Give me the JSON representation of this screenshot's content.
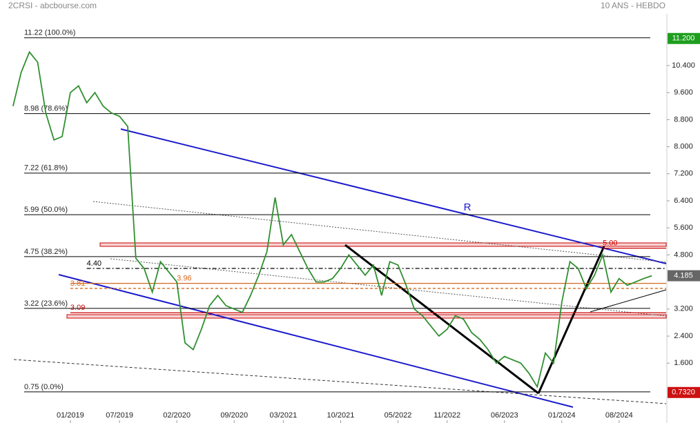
{
  "chart_data": {
    "type": "line",
    "title": "2CRSI - abcbourse.com",
    "subtitle": "10 ANS - HEBDO",
    "x": [
      "2018-06",
      "2018-07",
      "2018-08",
      "2018-09",
      "2018-10",
      "2018-11",
      "2018-12",
      "2019-01",
      "2019-02",
      "2019-03",
      "2019-04",
      "2019-05",
      "2019-06",
      "2019-07",
      "2019-08",
      "2019-09",
      "2019-10",
      "2019-11",
      "2019-12",
      "2020-01",
      "2020-02",
      "2020-03",
      "2020-04",
      "2020-05",
      "2020-06",
      "2020-07",
      "2020-08",
      "2020-09",
      "2020-10",
      "2020-11",
      "2020-12",
      "2021-01",
      "2021-02",
      "2021-03",
      "2021-04",
      "2021-05",
      "2021-06",
      "2021-07",
      "2021-08",
      "2021-09",
      "2021-10",
      "2021-11",
      "2021-12",
      "2022-01",
      "2022-02",
      "2022-03",
      "2022-04",
      "2022-05",
      "2022-06",
      "2022-07",
      "2022-08",
      "2022-09",
      "2022-10",
      "2022-11",
      "2022-12",
      "2023-01",
      "2023-02",
      "2023-03",
      "2023-04",
      "2023-05",
      "2023-06",
      "2023-07",
      "2023-08",
      "2023-09",
      "2023-10",
      "2023-11",
      "2023-12",
      "2024-01",
      "2024-02",
      "2024-03",
      "2024-04",
      "2024-05",
      "2024-06",
      "2024-07",
      "2024-08",
      "2024-09",
      "2024-10",
      "2024-11",
      "2024-12"
    ],
    "series": [
      {
        "color": "#2f8f2f",
        "values": [
          9.2,
          10.2,
          10.8,
          10.5,
          9.0,
          8.2,
          8.3,
          9.6,
          9.8,
          9.3,
          9.6,
          9.2,
          9.0,
          8.9,
          8.6,
          4.7,
          4.4,
          3.7,
          4.6,
          4.3,
          4.0,
          2.2,
          2.0,
          2.6,
          3.3,
          3.6,
          3.3,
          3.2,
          3.1,
          3.6,
          4.2,
          4.9,
          6.5,
          5.1,
          5.4,
          4.9,
          4.4,
          4.0,
          4.0,
          4.1,
          4.4,
          4.8,
          4.5,
          4.2,
          4.5,
          3.6,
          4.6,
          4.5,
          3.9,
          3.2,
          3.0,
          2.7,
          2.4,
          2.6,
          3.0,
          2.9,
          2.5,
          2.3,
          2.0,
          1.6,
          1.8,
          1.7,
          1.6,
          1.3,
          0.9,
          1.9,
          1.6,
          3.4,
          4.6,
          4.4,
          3.8,
          4.2,
          4.8,
          3.7,
          4.1,
          3.9,
          4.0,
          4.1,
          4.185
        ]
      }
    ],
    "xlim": [
      "2018-05",
      "2025-02"
    ],
    "xticks": [
      {
        "value": "2019-01",
        "label": "01/2019"
      },
      {
        "value": "2019-07",
        "label": "07/2019"
      },
      {
        "value": "2020-02",
        "label": "02/2020"
      },
      {
        "value": "2020-09",
        "label": "09/2020"
      },
      {
        "value": "2021-03",
        "label": "03/2021"
      },
      {
        "value": "2021-10",
        "label": "10/2021"
      },
      {
        "value": "2022-05",
        "label": "05/2022"
      },
      {
        "value": "2022-11",
        "label": "11/2022"
      },
      {
        "value": "2023-06",
        "label": "06/2023"
      },
      {
        "value": "2024-01",
        "label": "01/2024"
      },
      {
        "value": "2024-08",
        "label": "08/2024"
      }
    ],
    "ylim": [
      -0.17,
      11.93
    ],
    "yticks": [
      {
        "value": 10.4,
        "label": "10.400"
      },
      {
        "value": 9.6,
        "label": "9.600"
      },
      {
        "value": 8.8,
        "label": "8.800"
      },
      {
        "value": 8.0,
        "label": "8.000"
      },
      {
        "value": 7.2,
        "label": "7.200"
      },
      {
        "value": 6.4,
        "label": "6.400"
      },
      {
        "value": 5.6,
        "label": "5.600"
      },
      {
        "value": 4.8,
        "label": "4.800"
      },
      {
        "value": 3.2,
        "label": "3.200"
      },
      {
        "value": 2.4,
        "label": "2.400"
      },
      {
        "value": 1.6,
        "label": "1.600"
      }
    ],
    "levels": [
      {
        "value": 11.22,
        "label": "11.22  (100.0%)",
        "color": "#000"
      },
      {
        "value": 8.98,
        "label": "8.98  (78.6%)",
        "color": "#000"
      },
      {
        "value": 7.22,
        "label": "7.22  (61.8%)",
        "color": "#000"
      },
      {
        "value": 5.99,
        "label": "5.99  (50.0%)",
        "color": "#000"
      },
      {
        "value": 4.75,
        "label": "4.75  (38.2%)",
        "color": "#000"
      },
      {
        "value": 3.22,
        "label": "3.22  (23.6%)",
        "color": "#000"
      },
      {
        "value": 0.75,
        "label": "0.75  (0.0%)",
        "color": "#000"
      }
    ],
    "marks": [
      {
        "value": 4.4,
        "label": "4.40",
        "color": "#000",
        "dash": "6 3 2 3",
        "x0": "2019-03"
      },
      {
        "value": 3.96,
        "label": "3.96",
        "color": "#d2691e",
        "dash": "",
        "x0": "2019-01",
        "lx": "2020-02"
      },
      {
        "value": 3.81,
        "label": "3.81",
        "color": "#d2691e",
        "dash": "4 3",
        "x0": "2019-01"
      },
      {
        "value": 3.09,
        "label": "3.09",
        "color": "#cc0000",
        "dash": "",
        "x0": "2019-01"
      },
      {
        "value": 5.0,
        "label": "5.00",
        "color": "#cc0000",
        "dash": "",
        "x0": "2024-06"
      }
    ],
    "annotation": "R",
    "price_tags": [
      {
        "value": 11.2,
        "label": "11.200",
        "color": "#1e9e1e"
      },
      {
        "value": 4.185,
        "label": "4.185",
        "color": "#666"
      },
      {
        "value": 0.732,
        "label": "0.7320",
        "color": "#cc1111"
      }
    ]
  }
}
